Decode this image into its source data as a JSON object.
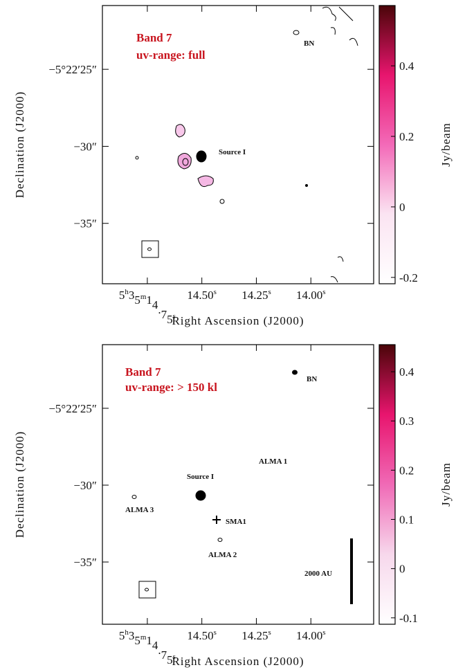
{
  "chart_data": [
    {
      "type": "image",
      "xlabel": "Right Ascension (J2000)",
      "ylabel": "Declination (J2000)",
      "xlim": [
        14.956,
        13.712
      ],
      "xticks": [
        {
          "value": 14.75,
          "label": "5h35m14.75s"
        },
        {
          "value": 14.5,
          "label": "14.50s"
        },
        {
          "value": 14.25,
          "label": "14.25s"
        },
        {
          "value": 14.0,
          "label": "14.00s"
        }
      ],
      "ylim": [
        38.92,
        20.86
      ],
      "yticks": [
        {
          "value": 25,
          "label": "−5°22′25″"
        },
        {
          "value": 30,
          "label": "−30″"
        },
        {
          "value": 35,
          "label": "−35″"
        }
      ],
      "colorbar": {
        "label": "Jy/beam",
        "lim": [
          -0.218,
          0.571
        ],
        "ticks": [
          -0.2,
          0.0,
          0.2,
          0.4
        ],
        "colors": [
          "#ffffff",
          "#fbe4f2",
          "#f36ab8",
          "#e8156e",
          "#4a0508"
        ]
      },
      "annotations": [
        "Band 7",
        "uv-range: full",
        "BN",
        "Source I"
      ]
    },
    {
      "type": "image",
      "xlabel": "Right Ascension (J2000)",
      "ylabel": "Declination (J2000)",
      "xlim": [
        14.956,
        13.712
      ],
      "xticks": [
        {
          "value": 14.75,
          "label": "5h35m14.75s"
        },
        {
          "value": 14.5,
          "label": "14.50s"
        },
        {
          "value": 14.25,
          "label": "14.25s"
        },
        {
          "value": 14.0,
          "label": "14.00s"
        }
      ],
      "ylim": [
        39.05,
        20.86
      ],
      "yticks": [
        {
          "value": 25,
          "label": "−5°22′25″"
        },
        {
          "value": 30,
          "label": "−30″"
        },
        {
          "value": 35,
          "label": "−35″"
        }
      ],
      "colorbar": {
        "label": "Jy/beam",
        "lim": [
          -0.113,
          0.455
        ],
        "ticks": [
          -0.1,
          0.0,
          0.1,
          0.2,
          0.3,
          0.4
        ],
        "colors": [
          "#ffffff",
          "#f7d8ec",
          "#f06ab6",
          "#e8156e",
          "#4a0508"
        ]
      },
      "annotations": [
        "Band 7",
        "uv-range: > 150 kl",
        "BN",
        "ALMA 1",
        "Source I",
        "ALMA 3",
        "SMA1",
        "ALMA 2",
        "2000 AU"
      ]
    }
  ]
}
